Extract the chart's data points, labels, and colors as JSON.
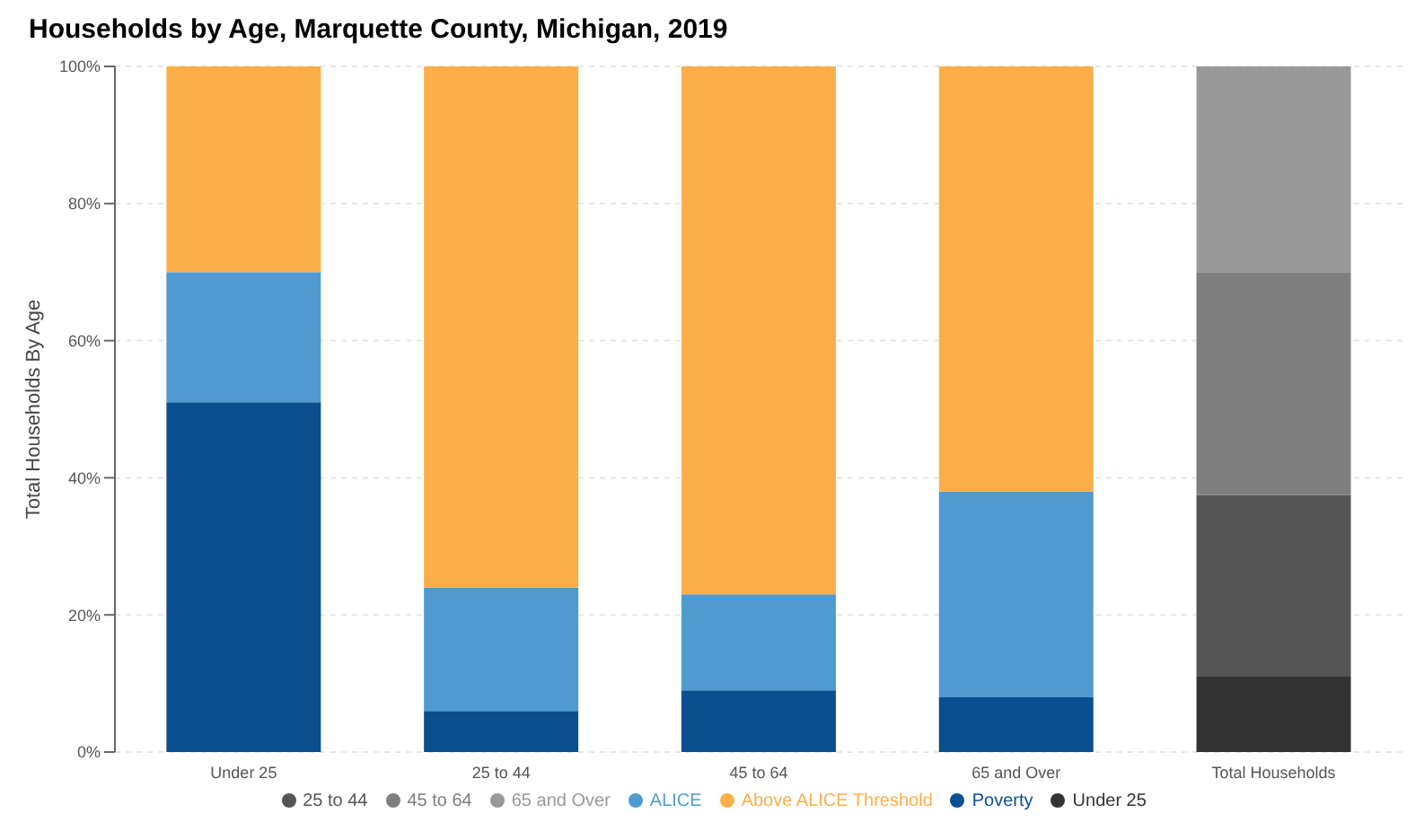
{
  "chart_data": {
    "type": "bar",
    "title": "Households by Age, Marquette County, Michigan, 2019",
    "ylabel": "Total Households By Age",
    "categories": [
      "Under 25",
      "25 to 44",
      "45 to 64",
      "65 and Over",
      "Total Households"
    ],
    "stacked": true,
    "series": [
      {
        "name": "Poverty",
        "color": "#0a4f8f",
        "values": [
          51,
          6,
          9,
          8,
          null
        ]
      },
      {
        "name": "ALICE",
        "color": "#4f9bd1",
        "values": [
          19,
          18,
          14,
          30,
          null
        ]
      },
      {
        "name": "Above ALICE Threshold",
        "color": "#fbae4a",
        "values": [
          30,
          76,
          77,
          62,
          null
        ]
      },
      {
        "name": "Under 25",
        "color": "#333333",
        "values": [
          null,
          null,
          null,
          null,
          11
        ]
      },
      {
        "name": "25 to 44",
        "color": "#555555",
        "values": [
          null,
          null,
          null,
          null,
          26.5
        ]
      },
      {
        "name": "45 to 64",
        "color": "#7f7f7f",
        "values": [
          null,
          null,
          null,
          null,
          32.5
        ]
      },
      {
        "name": "65 and Over",
        "color": "#999999",
        "values": [
          null,
          null,
          null,
          null,
          30
        ]
      }
    ],
    "ylim": [
      0,
      100
    ],
    "yticks": [
      {
        "value": 0,
        "label": "0%"
      },
      {
        "value": 20,
        "label": "20%"
      },
      {
        "value": 40,
        "label": "40%"
      },
      {
        "value": 60,
        "label": "60%"
      },
      {
        "value": 80,
        "label": "80%"
      },
      {
        "value": 100,
        "label": "100%"
      }
    ],
    "grid": "y",
    "legend": "bottom",
    "marker": "circle"
  }
}
